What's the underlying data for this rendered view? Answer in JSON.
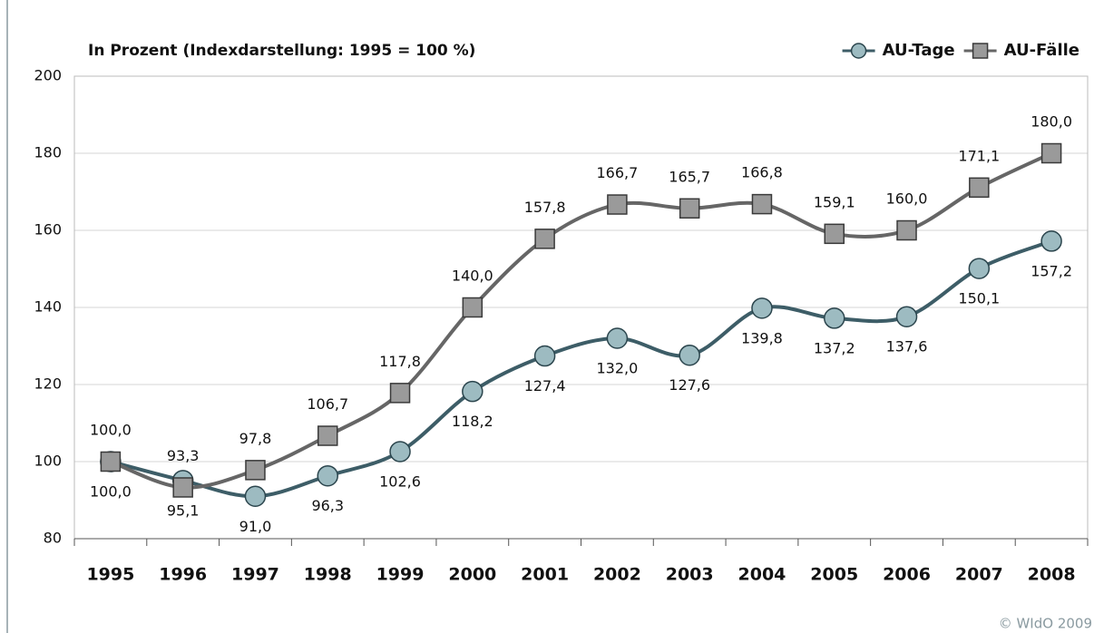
{
  "chart_data": {
    "type": "line",
    "subtitle": "In Prozent (Indexdarstellung: 1995 = 100 %)",
    "categories": [
      "1995",
      "1996",
      "1997",
      "1998",
      "1999",
      "2000",
      "2001",
      "2002",
      "2003",
      "2004",
      "2005",
      "2006",
      "2007",
      "2008"
    ],
    "series": [
      {
        "name": "AU-Tage",
        "color": "#3d5d67",
        "marker_color": "#9dbbc1",
        "marker": "circle",
        "values": [
          100.0,
          95.1,
          91.0,
          96.3,
          102.6,
          118.2,
          127.4,
          132.0,
          127.6,
          139.8,
          137.2,
          137.6,
          150.1,
          157.2
        ],
        "value_labels": [
          "100,0",
          "95,1",
          "91,0",
          "96,3",
          "102,6",
          "118,2",
          "127,4",
          "132,0",
          "127,6",
          "139,8",
          "137,2",
          "137,6",
          "150,1",
          "157,2"
        ]
      },
      {
        "name": "AU-Fälle",
        "color": "#666666",
        "marker_color": "#9a9a9a",
        "marker": "square",
        "values": [
          100.0,
          93.3,
          97.8,
          106.7,
          117.8,
          140.0,
          157.8,
          166.7,
          165.7,
          166.8,
          159.1,
          160.0,
          171.1,
          180.0
        ],
        "value_labels": [
          "100,0",
          "93,3",
          "97,8",
          "106,7",
          "117,8",
          "140,0",
          "157,8",
          "166,7",
          "165,7",
          "166,8",
          "159,1",
          "160,0",
          "171,1",
          "180,0"
        ]
      }
    ],
    "ylim": [
      80,
      200
    ],
    "yticks": [
      80,
      100,
      120,
      140,
      160,
      180,
      200
    ],
    "grid": true,
    "legend": "top-right",
    "source": "© WIdO 2009"
  }
}
